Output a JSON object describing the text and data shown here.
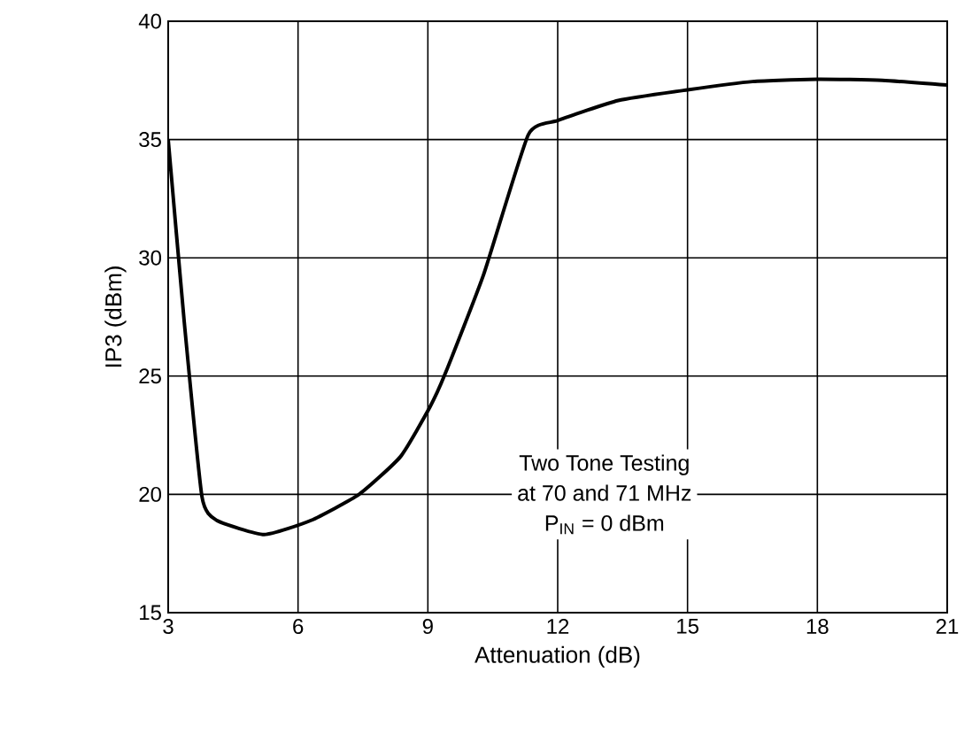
{
  "chart_data": {
    "type": "line",
    "xlabel": "Attenuation (dB)",
    "ylabel": "IP3 (dBm)",
    "xlim": [
      3,
      21
    ],
    "xticks": [
      3,
      6,
      9,
      12,
      15,
      18,
      21
    ],
    "ylim": [
      15,
      40
    ],
    "yticks": [
      15,
      20,
      25,
      30,
      35,
      40
    ],
    "grid": true,
    "annotations": [
      "Two Tone Testing",
      "at 70 and 71 MHz",
      "P$_{IN}$ = 0 dBm"
    ],
    "series": [
      {
        "color": "#000000",
        "x": [
          3,
          3.37,
          3.78,
          4.12,
          5.22,
          6.3,
          7.41,
          8.37,
          9.05,
          9.4,
          10.29,
          11.32,
          12,
          13.4,
          15,
          16.5,
          18,
          19.5,
          21
        ],
        "values": [
          35,
          27.3,
          19.9,
          18.9,
          18.3,
          18.9,
          20.0,
          21.6,
          23.7,
          25.1,
          29.3,
          35.2,
          35.8,
          36.65,
          37.1,
          37.45,
          37.55,
          37.5,
          37.3
        ]
      }
    ]
  }
}
